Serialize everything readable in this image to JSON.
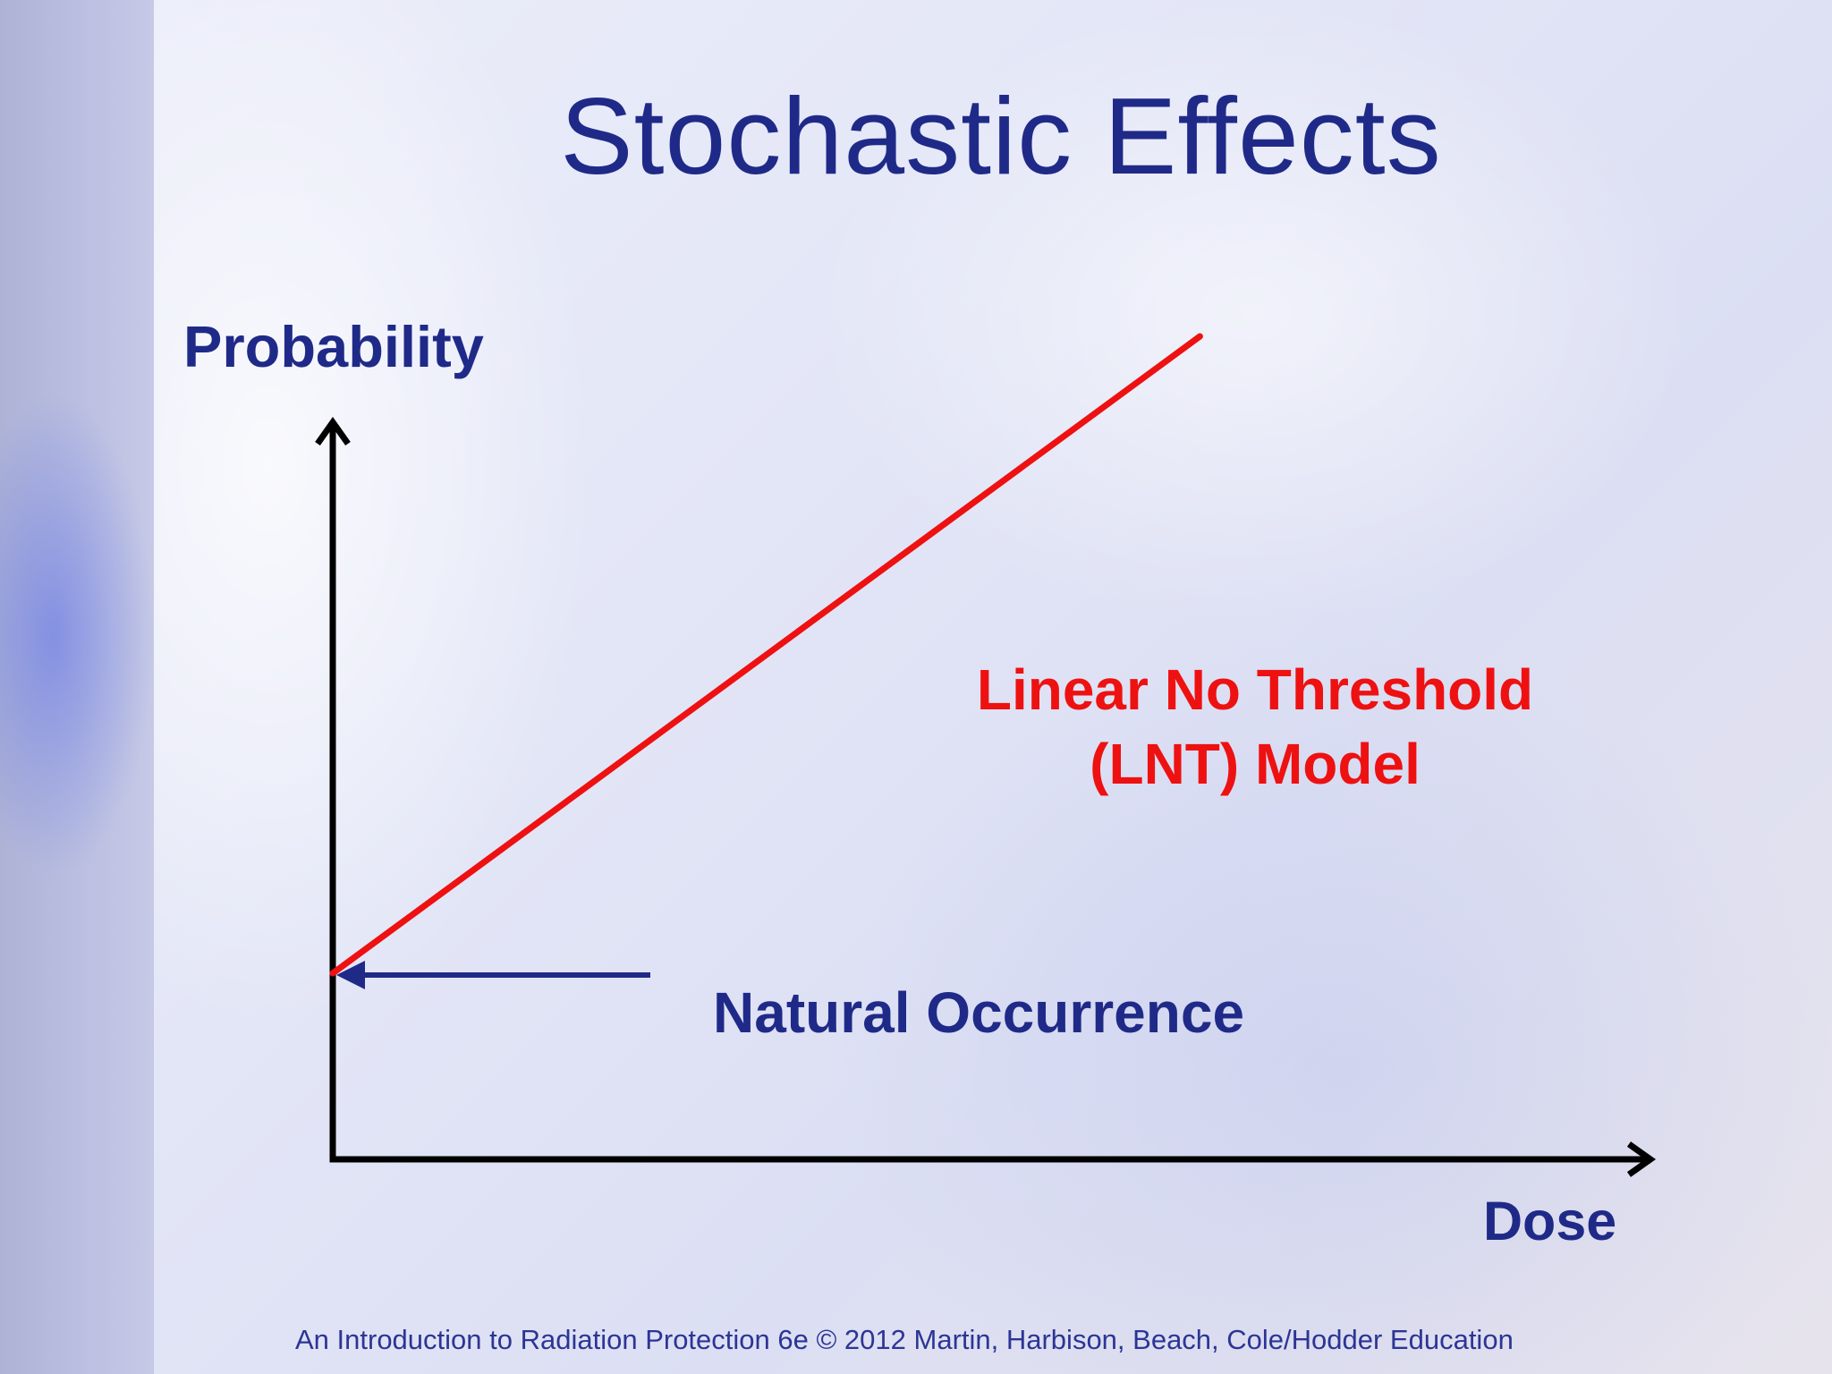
{
  "title": "Stochastic Effects",
  "footer": "An Introduction to Radiation Protection 6e © 2012 Martin, Harbison, Beach, Cole/Hodder Education",
  "colors": {
    "title": "#1f2a88",
    "axis": "#000000",
    "lnt_line": "#ee1111",
    "annotation_blue": "#1f2a88"
  },
  "chart_data": {
    "type": "line",
    "title": "Stochastic Effects",
    "xlabel": "Dose",
    "ylabel": "Probability",
    "xlim": [
      0,
      10
    ],
    "ylim": [
      0,
      10
    ],
    "grid": false,
    "ticks": false,
    "series": [
      {
        "name": "Linear No Threshold (LNT) Model",
        "x": [
          0,
          6.55
        ],
        "y": [
          2.08,
          9.2
        ]
      }
    ],
    "annotations": [
      {
        "label": "Linear No Threshold",
        "label_line2": "(LNT) Model",
        "color": "#ee1111",
        "target": "series"
      },
      {
        "label": "Natural Occurrence",
        "color": "#1f2a88",
        "arrow_to": {
          "x": 0,
          "y": 2.08
        }
      }
    ]
  }
}
